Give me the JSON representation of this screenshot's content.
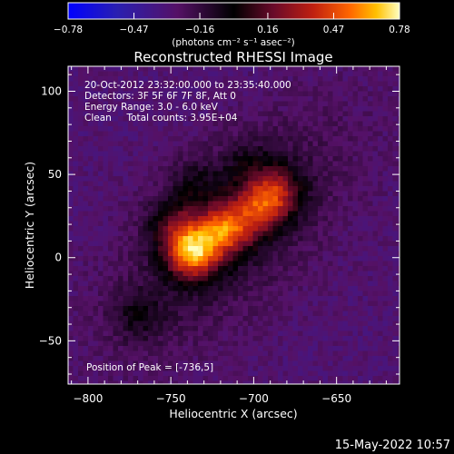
{
  "chart_data": {
    "type": "heatmap",
    "title": "Reconstructed RHESSI Image",
    "xlabel": "Heliocentric X (arcsec)",
    "ylabel": "Heliocentric Y (arcsec)",
    "xlim": [
      -812,
      -612
    ],
    "ylim": [
      -76,
      115
    ],
    "xticks": [
      -800,
      -750,
      -700,
      -650
    ],
    "xtick_labels": [
      "−800",
      "−750",
      "−700",
      "−650"
    ],
    "yticks": [
      -50,
      0,
      50,
      100
    ],
    "ytick_labels": [
      "−50",
      "0",
      "50",
      "100"
    ],
    "colorbar": {
      "ticks": [
        -0.78,
        -0.47,
        -0.16,
        0.16,
        0.47,
        0.78
      ],
      "tick_labels": [
        "−0.78",
        "−0.47",
        "−0.16",
        "0.16",
        "0.47",
        "0.78"
      ],
      "label": "(photons cm⁻² s⁻¹ asec⁻²)",
      "range": [
        -0.78,
        0.78
      ],
      "colors": [
        "#0000ff",
        "#2222aa",
        "#551166",
        "#000000",
        "#6a0a2a",
        "#c02010",
        "#ff6600",
        "#ffc000",
        "#ffffaa"
      ]
    },
    "annotations": [
      "20-Oct-2012 23:32:00.000 to 23:35:40.000",
      "Detectors: 3F 5F 6F 7F 8F, Att 0",
      "Energy Range: 3.0 - 6.0 keV",
      "Clean     Total counts: 3.95E+04"
    ],
    "peak_label": "Position of Peak = [-736,5]",
    "sources": [
      {
        "x": -737,
        "y": 3,
        "intensity": 0.78
      },
      {
        "x": -717,
        "y": 17,
        "intensity": 0.62
      },
      {
        "x": -696,
        "y": 30,
        "intensity": 0.45
      },
      {
        "x": -685,
        "y": 40,
        "intensity": 0.36
      },
      {
        "x": -748,
        "y": 20,
        "intensity": 0.3
      },
      {
        "x": -770,
        "y": -35,
        "intensity": 0.18
      },
      {
        "x": -735,
        "y": 45,
        "intensity": 0.15
      },
      {
        "x": -703,
        "y": 55,
        "intensity": 0.14
      }
    ]
  },
  "timestamp": "15-May-2022 10:57"
}
